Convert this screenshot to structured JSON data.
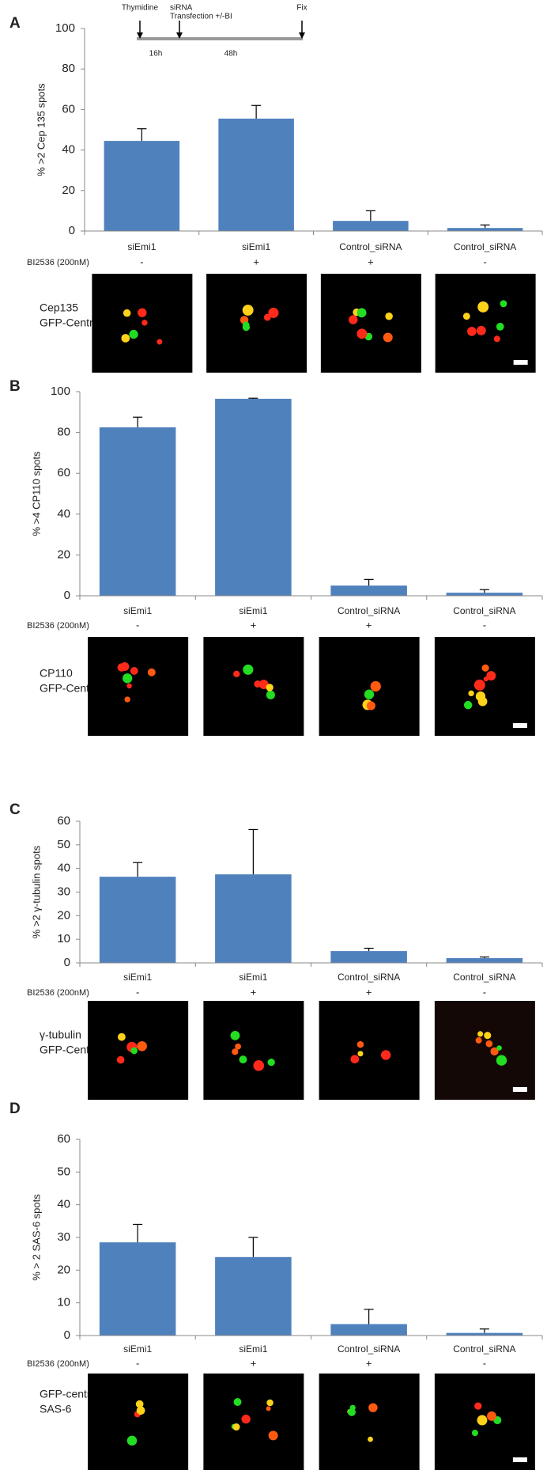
{
  "chart_data": [
    {
      "type": "bar",
      "panel": "A",
      "ylabel": "% >2 Cep 135 spots",
      "categories": [
        "siEmi1",
        "siEmi1",
        "Control_siRNA",
        "Control_siRNA"
      ],
      "values": [
        44.5,
        55.5,
        5,
        1.5
      ],
      "errors": [
        6,
        6.5,
        5,
        1.5
      ],
      "color": "#4f81bd",
      "ylim": [
        0,
        100
      ],
      "yticks": [
        0,
        20,
        40,
        60,
        80,
        100
      ],
      "treatment_label": "BI2536 (200nM)",
      "treatment": [
        "-",
        "+",
        "+",
        "-"
      ],
      "image_labels": [
        {
          "text": "Cep135",
          "color": "#e3261f"
        },
        {
          "text": "GFP-Centrin",
          "color": "#2ca02c"
        }
      ],
      "timeline": {
        "events": [
          "Thymidine",
          "siRNA",
          "Transfection +/-BI",
          "Fix"
        ],
        "intervals": [
          "16h",
          "48h"
        ]
      }
    },
    {
      "type": "bar",
      "panel": "B",
      "ylabel": "% >4 CP110 spots",
      "categories": [
        "siEmi1",
        "siEmi1",
        "Control_siRNA",
        "Control_siRNA"
      ],
      "values": [
        82.5,
        96.5,
        5,
        1.5
      ],
      "errors": [
        5,
        0.3,
        3,
        1.5
      ],
      "color": "#4f81bd",
      "ylim": [
        0,
        100
      ],
      "yticks": [
        0,
        20,
        40,
        60,
        80,
        100
      ],
      "treatment_label": "BI2536 (200nM)",
      "treatment": [
        "-",
        "+",
        "+",
        "-"
      ],
      "image_labels": [
        {
          "text": "CP110",
          "color": "#e3261f"
        },
        {
          "text": "GFP-Centrin",
          "color": "#2ca02c"
        }
      ]
    },
    {
      "type": "bar",
      "panel": "C",
      "ylabel": "% >2 γ-tubulin spots",
      "categories": [
        "siEmi1",
        "siEmi1",
        "Control_siRNA",
        "Control_siRNA"
      ],
      "values": [
        36.5,
        37.5,
        5,
        2
      ],
      "errors": [
        6,
        19,
        1.2,
        0.5
      ],
      "color": "#4f81bd",
      "ylim": [
        0,
        60
      ],
      "yticks": [
        0,
        10,
        20,
        30,
        40,
        50,
        60
      ],
      "treatment_label": "BI2536 (200nM)",
      "treatment": [
        "-",
        "+",
        "+",
        "-"
      ],
      "image_labels": [
        {
          "text": "γ-tubulin",
          "color": "#e3261f"
        },
        {
          "text": "GFP-Centrin",
          "color": "#2ca02c"
        }
      ]
    },
    {
      "type": "bar",
      "panel": "D",
      "ylabel": "% > 2 SAS-6 spots",
      "categories": [
        "siEmi1",
        "siEmi1",
        "Control_siRNA",
        "Control_siRNA"
      ],
      "values": [
        28.5,
        24,
        3.5,
        0.8
      ],
      "errors": [
        5.5,
        6,
        4.5,
        1.2
      ],
      "color": "#4f81bd",
      "ylim": [
        0,
        60
      ],
      "yticks": [
        0,
        10,
        20,
        30,
        40,
        50,
        60
      ],
      "treatment_label": "BI2536 (200nM)",
      "treatment": [
        "-",
        "+",
        "+",
        "-"
      ],
      "image_labels": [
        {
          "text": "GFP-centrin",
          "color": "#2ca02c"
        },
        {
          "text": "SAS-6",
          "color": "#e3261f"
        }
      ]
    }
  ]
}
